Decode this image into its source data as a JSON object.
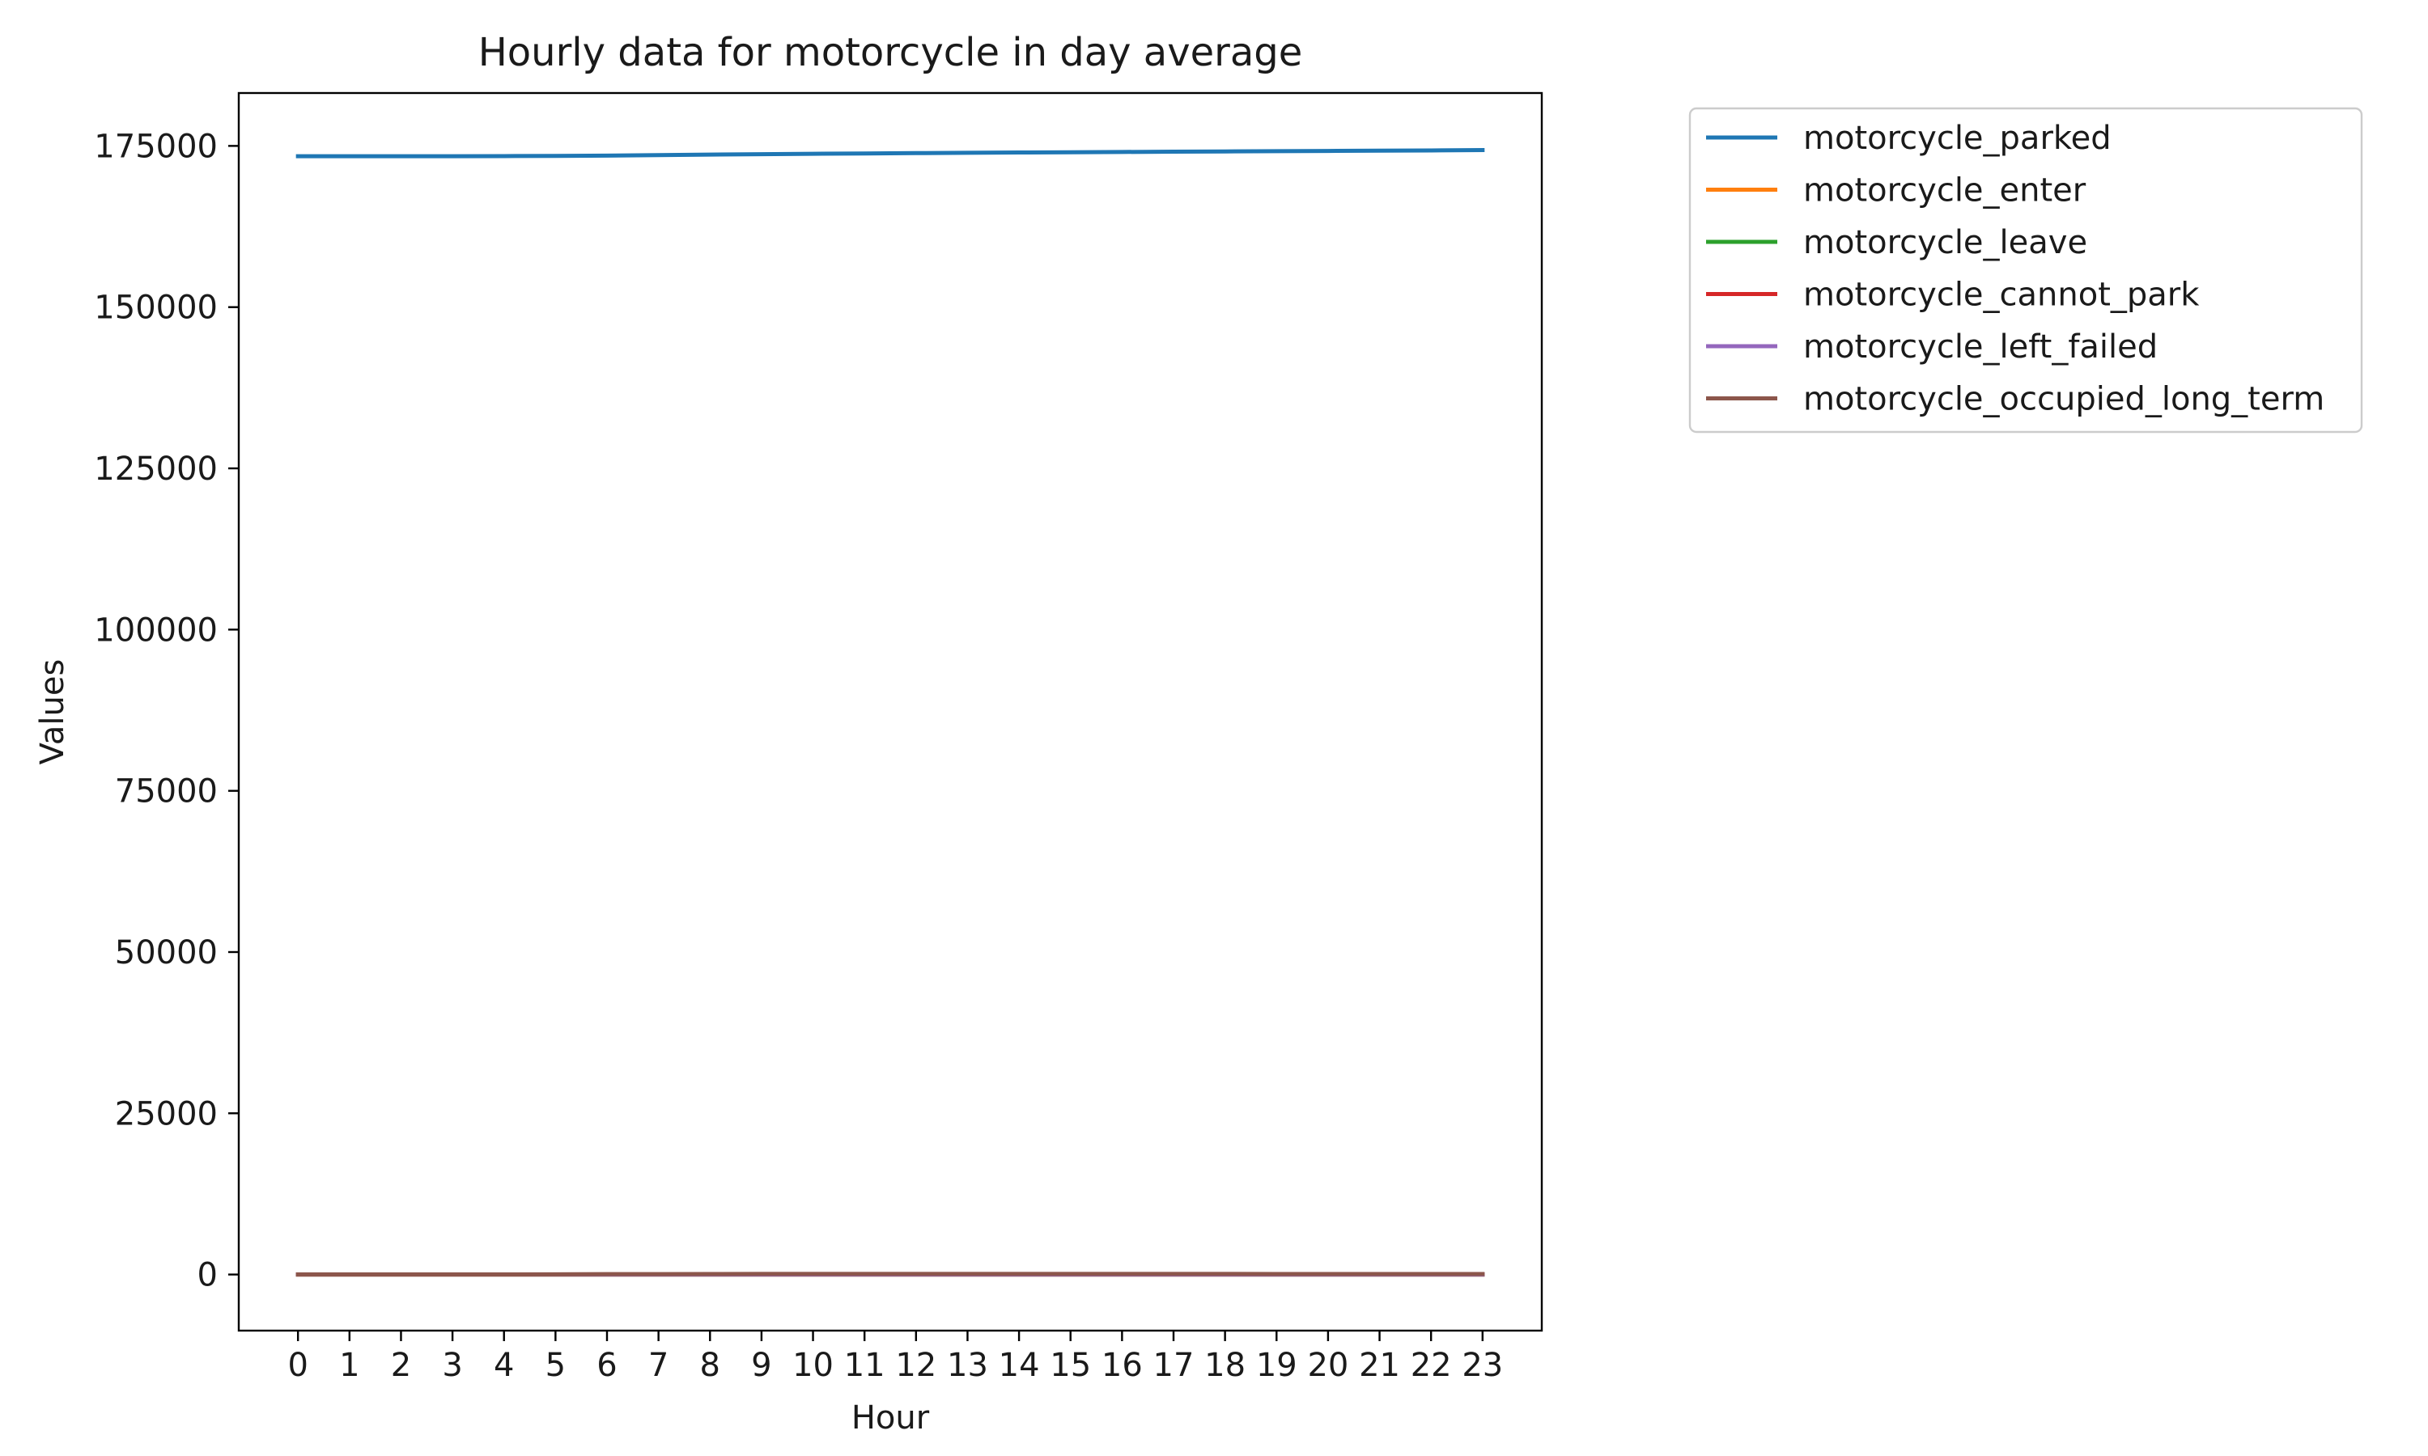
{
  "chart_data": {
    "type": "line",
    "title": "Hourly data for motorcycle in day average",
    "xlabel": "Hour",
    "ylabel": "Values",
    "x": [
      0,
      1,
      2,
      3,
      4,
      5,
      6,
      7,
      8,
      9,
      10,
      11,
      12,
      13,
      14,
      15,
      16,
      17,
      18,
      19,
      20,
      21,
      22,
      23
    ],
    "xlim": [
      -1.15,
      24.15
    ],
    "ylim": [
      -8700,
      183200
    ],
    "yticks": [
      0,
      25000,
      50000,
      75000,
      100000,
      125000,
      150000,
      175000
    ],
    "grid": false,
    "legend_position": "outside-top-right",
    "series": [
      {
        "name": "motorcycle_parked",
        "color": "#1f77b4",
        "values": [
          173400,
          173400,
          173400,
          173400,
          173420,
          173450,
          173500,
          173580,
          173650,
          173720,
          173780,
          173830,
          173880,
          173930,
          173980,
          174020,
          174060,
          174100,
          174140,
          174180,
          174220,
          174260,
          174300,
          174350
        ]
      },
      {
        "name": "motorcycle_enter",
        "color": "#ff7f0e",
        "values": [
          0,
          0,
          0,
          0,
          0,
          1,
          2,
          3,
          3,
          3,
          3,
          3,
          3,
          3,
          3,
          3,
          3,
          3,
          3,
          2,
          2,
          1,
          1,
          0
        ]
      },
      {
        "name": "motorcycle_leave",
        "color": "#2ca02c",
        "values": [
          0,
          0,
          0,
          0,
          0,
          0,
          1,
          2,
          3,
          3,
          3,
          3,
          3,
          3,
          3,
          3,
          3,
          3,
          3,
          3,
          2,
          2,
          1,
          1
        ]
      },
      {
        "name": "motorcycle_cannot_park",
        "color": "#d62728",
        "values": [
          0,
          0,
          0,
          0,
          0,
          0,
          0,
          0,
          0,
          0,
          0,
          0,
          0,
          0,
          0,
          0,
          0,
          0,
          0,
          0,
          0,
          0,
          0,
          0
        ]
      },
      {
        "name": "motorcycle_left_failed",
        "color": "#9467bd",
        "values": [
          0,
          0,
          0,
          0,
          0,
          0,
          0,
          0,
          0,
          0,
          0,
          0,
          0,
          0,
          0,
          0,
          0,
          0,
          0,
          0,
          0,
          0,
          0,
          0
        ]
      },
      {
        "name": "motorcycle_occupied_long_term",
        "color": "#8c564b",
        "values": [
          10,
          10,
          10,
          10,
          20,
          40,
          60,
          70,
          80,
          90,
          95,
          100,
          100,
          100,
          100,
          100,
          95,
          95,
          90,
          85,
          80,
          80,
          80,
          80
        ]
      }
    ]
  }
}
